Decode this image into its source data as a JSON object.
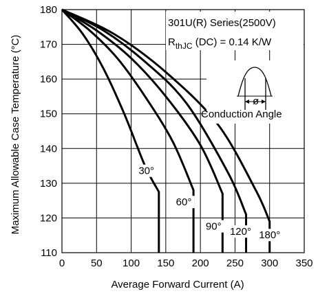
{
  "chart_data": {
    "type": "line",
    "title": "",
    "xlabel": "Average Forward Current (A)",
    "ylabel": "Maximum Allowable Case Temperature (°C)",
    "xlim": [
      0,
      350
    ],
    "ylim": [
      110,
      180
    ],
    "x_ticks": [
      "0",
      "50",
      "100",
      "150",
      "200",
      "250",
      "300",
      "350"
    ],
    "y_ticks": [
      "110",
      "120",
      "130",
      "140",
      "150",
      "160",
      "170",
      "180"
    ],
    "grid": true,
    "annotations": {
      "series_line": "301U(R) Series(2500V)",
      "rth_prefix": "R",
      "rth_sub": "thJC",
      "rth_suffix": " (DC) = 0.14 K/W",
      "phi_symbol": "ø",
      "conduction_angle": "Conduction Angle"
    },
    "series": [
      {
        "label": "30°",
        "x": [
          0,
          30,
          60,
          90,
          120,
          140,
          140
        ],
        "y": [
          180,
          173,
          163,
          150,
          135,
          127.5,
          110
        ]
      },
      {
        "label": "60°",
        "x": [
          0,
          40,
          80,
          120,
          160,
          190,
          190
        ],
        "y": [
          180,
          174,
          166,
          155,
          142,
          128,
          110
        ]
      },
      {
        "label": "90°",
        "x": [
          0,
          50,
          100,
          150,
          200,
          232,
          232
        ],
        "y": [
          180,
          174,
          166,
          155,
          141,
          127,
          110
        ]
      },
      {
        "label": "120°",
        "x": [
          0,
          60,
          120,
          180,
          240,
          266,
          266
        ],
        "y": [
          180,
          174,
          165,
          153,
          133,
          121,
          110
        ]
      },
      {
        "label": "180°",
        "x": [
          0,
          75,
          150,
          225,
          280,
          300,
          300
        ],
        "y": [
          180,
          173,
          162,
          147,
          128,
          119,
          110
        ]
      }
    ],
    "curve_labels": [
      {
        "text": "30°",
        "x": 122,
        "y": 133
      },
      {
        "text": "60°",
        "x": 176,
        "y": 124
      },
      {
        "text": "90°",
        "x": 219,
        "y": 117
      },
      {
        "text": "120°",
        "x": 258,
        "y": 115.5
      },
      {
        "text": "180°",
        "x": 300,
        "y": 114.5
      }
    ]
  }
}
